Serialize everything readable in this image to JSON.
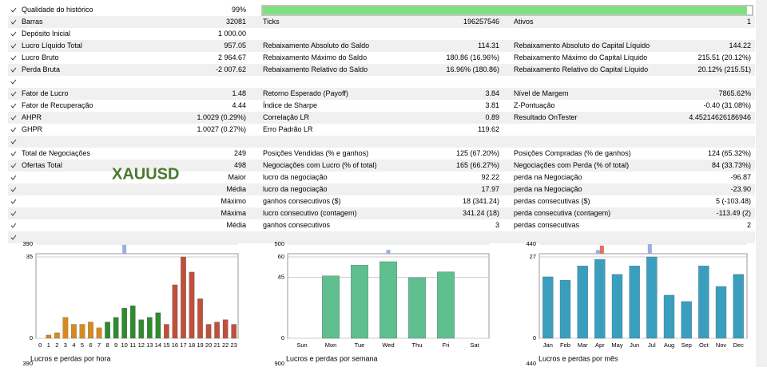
{
  "report": {
    "rows": [
      {
        "cells": [
          [
            "Qualidade do histórico",
            "99%"
          ]
        ]
      },
      {
        "cells": [
          [
            "Barras",
            "32081"
          ],
          [
            "Ticks",
            "196257546"
          ],
          [
            "Ativos",
            "1"
          ]
        ]
      },
      {
        "cells": [
          [
            "Depósito Inicial",
            "1 000.00"
          ]
        ]
      },
      {
        "cells": [
          [
            "Lucro Líquido Total",
            "957.05"
          ],
          [
            "Rebaixamento Absoluto do Saldo",
            "114.31"
          ],
          [
            "Rebaixamento Absoluto do Capital Líquido",
            "144.22"
          ]
        ]
      },
      {
        "cells": [
          [
            "Lucro Bruto",
            "2 964.67"
          ],
          [
            "Rebaixamento Máximo do Saldo",
            "180.86 (16.96%)"
          ],
          [
            "Rebaixamento Máximo do Capital Líquido",
            "215.51 (20.12%)"
          ]
        ]
      },
      {
        "cells": [
          [
            "Perda Bruta",
            "-2 007.62"
          ],
          [
            "Rebaixamento Relativo do Saldo",
            "16.96% (180.86)"
          ],
          [
            "Rebaixamento Relativo do Capital Líquido",
            "20.12% (215.51)"
          ]
        ]
      },
      {
        "cells": []
      },
      {
        "cells": [
          [
            "Fator de Lucro",
            "1.48"
          ],
          [
            "Retorno Esperado (Payoff)",
            "3.84"
          ],
          [
            "Nível de Margem",
            "7865.62%"
          ]
        ]
      },
      {
        "cells": [
          [
            "Fator de Recuperação",
            "4.44"
          ],
          [
            "Índice de Sharpe",
            "3.81"
          ],
          [
            "Z-Pontuação",
            "-0.40 (31.08%)"
          ]
        ]
      },
      {
        "cells": [
          [
            "AHPR",
            "1.0029 (0.29%)"
          ],
          [
            "Correlação LR",
            "0.89"
          ],
          [
            "Resultado OnTester",
            "4.45214626186946"
          ]
        ]
      },
      {
        "cells": [
          [
            "GHPR",
            "1.0027 (0.27%)"
          ],
          [
            "Erro Padrão LR",
            "119.62"
          ]
        ]
      },
      {
        "cells": []
      },
      {
        "cells": [
          [
            "Total de Negociações",
            "249"
          ],
          [
            "Posições Vendidas (% e ganhos)",
            "125 (67.20%)"
          ],
          [
            "Posições Compradas (% de ganhos)",
            "124 (65.32%)"
          ]
        ]
      },
      {
        "cells": [
          [
            "Ofertas Total",
            "498"
          ],
          [
            "Negociações com Lucro (% of total)",
            "165 (66.27%)"
          ],
          [
            "Negociações com Perda (% of total)",
            "84 (33.73%)"
          ]
        ]
      },
      {
        "cells": [
          [
            null,
            "Maior"
          ],
          [
            "lucro da negociação",
            "92.22"
          ],
          [
            "perda na Negociação",
            "-96.87"
          ]
        ]
      },
      {
        "cells": [
          [
            null,
            "Média"
          ],
          [
            "lucro da negociação",
            "17.97"
          ],
          [
            "perda na Negociação",
            "-23.90"
          ]
        ]
      },
      {
        "cells": [
          [
            null,
            "Máximo"
          ],
          [
            "ganhos consecutivos ($)",
            "18 (341.24)"
          ],
          [
            "perdas consecutivas ($)",
            "5 (-103.48)"
          ]
        ]
      },
      {
        "cells": [
          [
            null,
            "Máxima"
          ],
          [
            "lucro consecutivo (contagem)",
            "341.24 (18)"
          ],
          [
            "perda consecutiva (contagem)",
            "-113.49 (2)"
          ]
        ]
      },
      {
        "cells": [
          [
            null,
            "Média"
          ],
          [
            "ganhos consecutivos",
            "3"
          ],
          [
            "perdas consecutivas",
            "2"
          ]
        ]
      },
      {
        "cells": []
      }
    ],
    "quality_value": 99,
    "quality_range": [
      0,
      100
    ],
    "symbol": "XAUUSD"
  },
  "charts": [
    {
      "type": "bar",
      "title": "Lucros e perdas por hora",
      "categories": [
        "0",
        "1",
        "2",
        "3",
        "4",
        "5",
        "6",
        "7",
        "8",
        "9",
        "10",
        "11",
        "12",
        "13",
        "14",
        "15",
        "16",
        "17",
        "18",
        "19",
        "20",
        "21",
        "22",
        "23"
      ],
      "values": [
        0,
        1.4,
        2.4,
        9,
        6,
        6,
        7,
        4.5,
        7,
        9,
        13,
        14,
        8,
        9,
        11,
        6,
        23,
        35,
        28.5,
        17,
        6,
        7,
        8,
        6
      ],
      "colors": [
        "#d98a1c",
        "#d98a1c",
        "#d98a1c",
        "#d98a1c",
        "#d98a1c",
        "#d98a1c",
        "#d98a1c",
        "#d98a1c",
        "#2e8b2e",
        "#2e8b2e",
        "#2e8b2e",
        "#2e8b2e",
        "#2e8b2e",
        "#2e8b2e",
        "#2e8b2e",
        "#c0503a",
        "#c0503a",
        "#c0503a",
        "#c0503a",
        "#c0503a",
        "#c0503a",
        "#c0503a",
        "#c0503a",
        "#c0503a"
      ],
      "ylim": [
        0,
        35
      ],
      "yticks": [
        0,
        35
      ],
      "top": {
        "ylim": [
          0,
          390
        ],
        "yticks": [
          390
        ],
        "series": [
          {
            "color": "#9aaee0",
            "values": [
              0,
              0,
              0,
              0,
              0,
              0,
              0,
              0,
              0,
              0,
              360,
              0,
              0,
              0,
              0,
              0,
              0,
              0,
              0,
              0,
              0,
              0,
              0,
              0
            ]
          }
        ]
      },
      "next_label": "390"
    },
    {
      "type": "bar",
      "title": "Lucros e perdas por semana",
      "categories": [
        "Sun",
        "Mon",
        "Tue",
        "Wed",
        "Thu",
        "Fri",
        "Sat"
      ],
      "values": [
        0,
        46,
        54,
        56.5,
        44.7,
        49,
        0
      ],
      "colors": [
        "#5fbf8f",
        "#5fbf8f",
        "#5fbf8f",
        "#5fbf8f",
        "#5fbf8f",
        "#5fbf8f",
        "#5fbf8f"
      ],
      "ylim": [
        0,
        60
      ],
      "yticks": [
        0,
        45,
        60
      ],
      "top": {
        "ylim": [
          0,
          500
        ],
        "yticks": [
          500
        ],
        "series": [
          {
            "color": "#9aaee0",
            "values": [
              0,
              0,
              0,
              200,
              0,
              0,
              0
            ]
          }
        ]
      },
      "next_label": "900"
    },
    {
      "type": "bar",
      "title": "Lucros e perdas por mês",
      "categories": [
        "Jan",
        "Feb",
        "Mar",
        "Apr",
        "May",
        "Jun",
        "Jul",
        "Aug",
        "Sep",
        "Oct",
        "Nov",
        "Dec"
      ],
      "values": [
        20.4,
        19.3,
        24,
        26.2,
        21.2,
        24,
        27,
        14.3,
        12.2,
        24,
        17.2,
        21.2
      ],
      "colors": [
        "#3a9fbf",
        "#3a9fbf",
        "#3a9fbf",
        "#3a9fbf",
        "#3a9fbf",
        "#3a9fbf",
        "#3a9fbf",
        "#3a9fbf",
        "#3a9fbf",
        "#3a9fbf",
        "#3a9fbf",
        "#3a9fbf"
      ],
      "ylim": [
        0,
        27
      ],
      "yticks": [
        0,
        27
      ],
      "top": {
        "ylim": [
          0,
          440
        ],
        "yticks": [
          440
        ],
        "series": [
          {
            "color": "#9aaee0",
            "values": [
              0,
              0,
              0,
              170,
              0,
              0,
              440,
              0,
              0,
              0,
              0,
              0
            ]
          },
          {
            "color": "#e07060",
            "values": [
              0,
              0,
              0,
              370,
              0,
              0,
              0,
              0,
              0,
              0,
              0,
              0
            ]
          }
        ]
      },
      "next_label": "440"
    }
  ]
}
